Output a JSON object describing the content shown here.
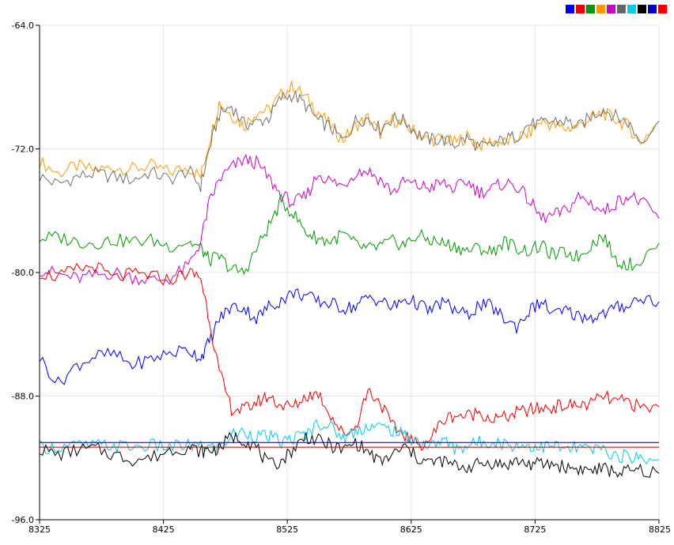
{
  "chart_data": {
    "type": "line",
    "title": "",
    "xlabel": "",
    "ylabel": "",
    "xlim": [
      8325,
      8825
    ],
    "ylim": [
      -96,
      -64
    ],
    "xticks": [
      8325,
      8425,
      8525,
      8625,
      8725,
      8825
    ],
    "yticks": [
      -64.0,
      -72.0,
      -80.0,
      -88.0,
      -96.0
    ],
    "ytick_labels": [
      "-64.0",
      "-72.0",
      "-80.0",
      "-88.0",
      "-96.0"
    ],
    "xtick_labels": [
      "8325",
      "8425",
      "8525",
      "8625",
      "8725",
      "8825"
    ],
    "grid": true,
    "legend_placement": "top-right",
    "legend_colors": [
      "#0000ee",
      "#ee0000",
      "#009900",
      "#ff9900",
      "#cc00cc",
      "#666666",
      "#00ccee",
      "#000000",
      "#0000cc",
      "#ee0000"
    ],
    "series": [
      {
        "color": "#ff9900",
        "x": [
          8325,
          8340,
          8355,
          8370,
          8385,
          8400,
          8415,
          8430,
          8445,
          8455,
          8462,
          8470,
          8480,
          8490,
          8500,
          8510,
          8520,
          8530,
          8540,
          8550,
          8560,
          8570,
          8580,
          8590,
          8600,
          8610,
          8620,
          8630,
          8640,
          8650,
          8660,
          8670,
          8680,
          8690,
          8700,
          8710,
          8720,
          8730,
          8740,
          8750,
          8760,
          8770,
          8780,
          8790,
          8800,
          8810,
          8825
        ],
        "y": [
          -72.8,
          -73.6,
          -73.1,
          -73.4,
          -73.2,
          -73.3,
          -73.1,
          -73.5,
          -73.2,
          -73.8,
          -71.5,
          -69.0,
          -69.8,
          -70.5,
          -69.6,
          -69.5,
          -68.5,
          -67.9,
          -68.7,
          -69.6,
          -70.5,
          -71.4,
          -70.5,
          -70.0,
          -71.0,
          -70.1,
          -70.5,
          -71.0,
          -71.5,
          -71.3,
          -71.6,
          -71.2,
          -71.8,
          -71.5,
          -71.6,
          -71.3,
          -71.0,
          -70.2,
          -70.5,
          -70.7,
          -70.5,
          -70.0,
          -69.7,
          -70.1,
          -70.5,
          -71.6,
          -70.2
        ]
      },
      {
        "color": "#707070",
        "x": [
          8325,
          8340,
          8355,
          8370,
          8385,
          8400,
          8415,
          8430,
          8445,
          8455,
          8462,
          8470,
          8480,
          8490,
          8500,
          8510,
          8520,
          8530,
          8540,
          8550,
          8560,
          8570,
          8580,
          8590,
          8600,
          8610,
          8620,
          8630,
          8640,
          8650,
          8660,
          8670,
          8680,
          8690,
          8700,
          8710,
          8720,
          8730,
          8740,
          8750,
          8760,
          8770,
          8780,
          8790,
          8800,
          8810,
          8825
        ],
        "y": [
          -73.8,
          -74.3,
          -73.8,
          -73.6,
          -73.8,
          -74.0,
          -73.5,
          -74.0,
          -73.4,
          -74.4,
          -72.0,
          -69.8,
          -69.2,
          -70.4,
          -70.3,
          -70.0,
          -68.7,
          -68.5,
          -69.2,
          -70.2,
          -70.6,
          -71.5,
          -70.2,
          -70.0,
          -70.7,
          -70.0,
          -70.2,
          -71.0,
          -71.4,
          -71.4,
          -71.7,
          -71.3,
          -71.9,
          -71.8,
          -71.4,
          -71.2,
          -70.4,
          -70.4,
          -70.2,
          -70.2,
          -70.6,
          -69.9,
          -69.4,
          -69.9,
          -70.3,
          -71.5,
          -70.2
        ]
      },
      {
        "color": "#cc00cc",
        "x": [
          8325,
          8340,
          8355,
          8370,
          8385,
          8400,
          8415,
          8430,
          8445,
          8455,
          8462,
          8470,
          8480,
          8490,
          8500,
          8510,
          8520,
          8530,
          8540,
          8550,
          8560,
          8570,
          8580,
          8590,
          8600,
          8610,
          8620,
          8630,
          8640,
          8650,
          8660,
          8670,
          8680,
          8690,
          8700,
          8710,
          8720,
          8730,
          8740,
          8750,
          8760,
          8770,
          8780,
          8790,
          8800,
          8810,
          8825
        ],
        "y": [
          -79.8,
          -80.1,
          -80.4,
          -80.2,
          -80.0,
          -80.3,
          -80.5,
          -80.4,
          -79.6,
          -78.0,
          -75.5,
          -74.0,
          -73.2,
          -72.7,
          -72.9,
          -73.9,
          -75.0,
          -75.5,
          -75.1,
          -73.6,
          -74.1,
          -74.4,
          -73.5,
          -73.4,
          -74.0,
          -74.8,
          -74.1,
          -74.4,
          -74.5,
          -74.2,
          -74.6,
          -74.1,
          -74.8,
          -74.6,
          -74.2,
          -74.4,
          -75.3,
          -76.5,
          -76.3,
          -76.0,
          -75.1,
          -75.5,
          -76.1,
          -75.5,
          -75.0,
          -75.4,
          -76.5
        ]
      },
      {
        "color": "#009900",
        "x": [
          8325,
          8340,
          8355,
          8370,
          8385,
          8400,
          8415,
          8430,
          8445,
          8455,
          8462,
          8470,
          8480,
          8490,
          8500,
          8510,
          8520,
          8530,
          8540,
          8550,
          8560,
          8570,
          8580,
          8590,
          8600,
          8610,
          8620,
          8630,
          8640,
          8650,
          8660,
          8670,
          8680,
          8690,
          8700,
          8710,
          8720,
          8730,
          8740,
          8750,
          8760,
          8770,
          8780,
          8790,
          8800,
          8810,
          8825
        ],
        "y": [
          -77.8,
          -77.7,
          -78.0,
          -78.1,
          -77.9,
          -78.0,
          -77.9,
          -78.3,
          -78.0,
          -78.4,
          -79.2,
          -79.0,
          -79.8,
          -80.0,
          -78.5,
          -77.0,
          -75.4,
          -76.2,
          -77.4,
          -77.8,
          -78.0,
          -77.5,
          -78.2,
          -78.5,
          -78.3,
          -78.0,
          -78.2,
          -77.6,
          -77.9,
          -78.1,
          -78.3,
          -78.6,
          -78.4,
          -78.7,
          -78.0,
          -78.4,
          -78.6,
          -78.3,
          -78.9,
          -78.7,
          -79.0,
          -78.2,
          -77.6,
          -79.2,
          -79.5,
          -79.3,
          -78.1
        ]
      },
      {
        "color": "#0000ee",
        "x": [
          8325,
          8340,
          8355,
          8370,
          8385,
          8400,
          8415,
          8430,
          8445,
          8455,
          8462,
          8470,
          8480,
          8490,
          8500,
          8510,
          8520,
          8530,
          8540,
          8550,
          8560,
          8570,
          8580,
          8590,
          8600,
          8610,
          8620,
          8630,
          8640,
          8650,
          8660,
          8670,
          8680,
          8690,
          8700,
          8710,
          8720,
          8730,
          8740,
          8750,
          8760,
          8770,
          8780,
          8790,
          8800,
          8810,
          8825
        ],
        "y": [
          -85.5,
          -87.2,
          -86.0,
          -85.4,
          -85.3,
          -86.0,
          -85.6,
          -85.2,
          -85.0,
          -85.5,
          -84.5,
          -83.0,
          -82.2,
          -82.3,
          -83.0,
          -82.2,
          -81.8,
          -81.3,
          -81.5,
          -81.9,
          -82.0,
          -82.3,
          -82.2,
          -81.6,
          -81.8,
          -82.3,
          -81.7,
          -82.0,
          -82.5,
          -81.9,
          -82.4,
          -82.8,
          -82.1,
          -82.2,
          -83.0,
          -83.5,
          -82.5,
          -81.9,
          -82.7,
          -82.5,
          -82.8,
          -82.9,
          -82.7,
          -82.3,
          -82.1,
          -81.6,
          -81.9
        ]
      },
      {
        "color": "#ee0000",
        "x": [
          8325,
          8340,
          8355,
          8370,
          8385,
          8400,
          8415,
          8430,
          8445,
          8455,
          8462,
          8470,
          8480,
          8490,
          8500,
          8510,
          8520,
          8530,
          8540,
          8550,
          8560,
          8570,
          8580,
          8590,
          8600,
          8610,
          8620,
          8630,
          8640,
          8650,
          8660,
          8670,
          8680,
          8690,
          8700,
          8710,
          8720,
          8730,
          8740,
          8750,
          8760,
          8770,
          8780,
          8790,
          8800,
          8810,
          8825
        ],
        "y": [
          -80.0,
          -80.3,
          -79.8,
          -79.6,
          -80.4,
          -80.1,
          -80.2,
          -80.5,
          -80.0,
          -80.3,
          -83.0,
          -86.5,
          -88.8,
          -88.9,
          -88.4,
          -88.0,
          -88.6,
          -88.7,
          -88.0,
          -87.8,
          -89.2,
          -90.5,
          -90.0,
          -87.6,
          -88.4,
          -90.0,
          -90.5,
          -91.2,
          -90.8,
          -89.6,
          -89.2,
          -89.3,
          -89.0,
          -89.5,
          -89.4,
          -89.1,
          -88.9,
          -88.8,
          -88.7,
          -88.6,
          -88.6,
          -88.5,
          -88.0,
          -88.4,
          -88.3,
          -88.8,
          -88.7
        ]
      },
      {
        "color": "#00ccee",
        "x": [
          8325,
          8340,
          8355,
          8370,
          8385,
          8400,
          8415,
          8430,
          8445,
          8455,
          8462,
          8470,
          8480,
          8490,
          8500,
          8510,
          8520,
          8530,
          8540,
          8550,
          8560,
          8570,
          8580,
          8590,
          8600,
          8610,
          8620,
          8630,
          8640,
          8650,
          8660,
          8670,
          8680,
          8690,
          8700,
          8710,
          8720,
          8730,
          8740,
          8750,
          8760,
          8770,
          8780,
          8790,
          8800,
          8810,
          8825
        ],
        "y": [
          -91.3,
          -91.3,
          -91.2,
          -91.2,
          -91.2,
          -91.3,
          -91.2,
          -91.3,
          -91.2,
          -91.3,
          -91.3,
          -91.4,
          -90.5,
          -90.3,
          -90.6,
          -90.6,
          -91.0,
          -90.7,
          -90.5,
          -89.7,
          -90.0,
          -90.7,
          -90.3,
          -89.9,
          -90.0,
          -90.2,
          -90.6,
          -90.9,
          -91.3,
          -90.8,
          -91.4,
          -91.2,
          -91.0,
          -90.9,
          -91.1,
          -91.2,
          -91.2,
          -91.3,
          -91.2,
          -91.5,
          -91.3,
          -91.5,
          -91.4,
          -91.9,
          -91.9,
          -92.0,
          -92.1
        ]
      },
      {
        "color": "#000000",
        "x": [
          8325,
          8340,
          8355,
          8370,
          8385,
          8400,
          8415,
          8430,
          8445,
          8455,
          8462,
          8470,
          8480,
          8490,
          8500,
          8510,
          8520,
          8530,
          8540,
          8550,
          8560,
          8570,
          8580,
          8590,
          8600,
          8610,
          8620,
          8630,
          8640,
          8650,
          8660,
          8670,
          8680,
          8690,
          8700,
          8710,
          8720,
          8730,
          8740,
          8750,
          8760,
          8770,
          8780,
          8790,
          8800,
          8810,
          8825
        ],
        "y": [
          -91.4,
          -91.8,
          -91.5,
          -91.4,
          -91.8,
          -92.1,
          -92.0,
          -91.5,
          -91.3,
          -91.6,
          -91.5,
          -91.4,
          -90.6,
          -90.8,
          -91.3,
          -92.5,
          -92.2,
          -91.4,
          -90.6,
          -90.9,
          -91.2,
          -91.5,
          -91.0,
          -91.6,
          -92.3,
          -91.8,
          -91.3,
          -92.0,
          -92.3,
          -92.2,
          -92.5,
          -92.6,
          -92.4,
          -92.3,
          -92.5,
          -92.2,
          -92.4,
          -92.4,
          -92.4,
          -92.6,
          -92.7,
          -92.8,
          -92.7,
          -92.9,
          -92.9,
          -92.8,
          -93.0
        ]
      },
      {
        "color": "#000066",
        "x": [
          8325,
          8825
        ],
        "y": [
          -91.0,
          -91.0
        ]
      },
      {
        "color": "#aa0000",
        "x": [
          8325,
          8825
        ],
        "y": [
          -91.3,
          -91.3
        ]
      }
    ]
  }
}
